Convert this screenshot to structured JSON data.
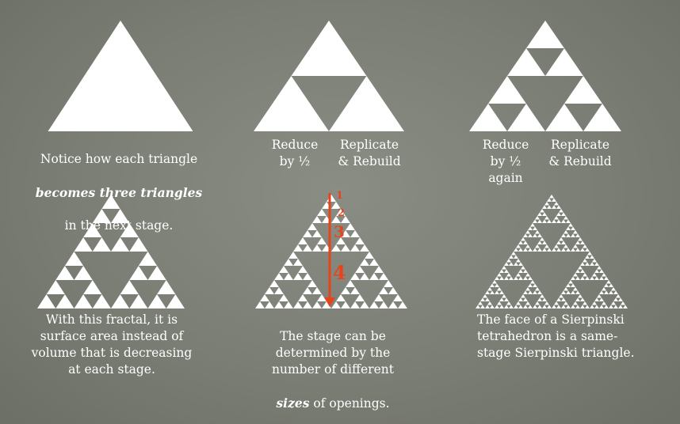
{
  "caption_1": {
    "line1": "Notice how each triangle",
    "line2": "becomes three triangles",
    "line3": "in the next stage."
  },
  "caption_2": {
    "reduce": "Reduce\nby ½",
    "replicate": "Replicate\n& Rebuild"
  },
  "caption_3": {
    "reduce": "Reduce\nby ½\nagain",
    "replicate": "Replicate\n& Rebuild"
  },
  "caption_4": "With this fractal, it is\nsurface area instead of\nvolume that is decreasing\nat each stage.",
  "caption_5": {
    "line1": "The stage can be\ndetermined by the\nnumber of different",
    "emph": "sizes",
    "line2": " of openings."
  },
  "caption_6": "The face of a Sierpinski\ntetrahedron is a same-\nstage Sierpinski triangle.",
  "stage_markers": [
    "1",
    "2",
    "3",
    "4"
  ],
  "colors": {
    "triangle": "#ffffff",
    "arrow": "#e8441c"
  },
  "figures": [
    {
      "name": "stage-0-triangle",
      "depth": 0
    },
    {
      "name": "stage-1-triangle",
      "depth": 1
    },
    {
      "name": "stage-2-triangle",
      "depth": 2
    },
    {
      "name": "stage-3-triangle",
      "depth": 3
    },
    {
      "name": "stage-4-triangle",
      "depth": 4
    },
    {
      "name": "stage-5-triangle",
      "depth": 5
    }
  ]
}
